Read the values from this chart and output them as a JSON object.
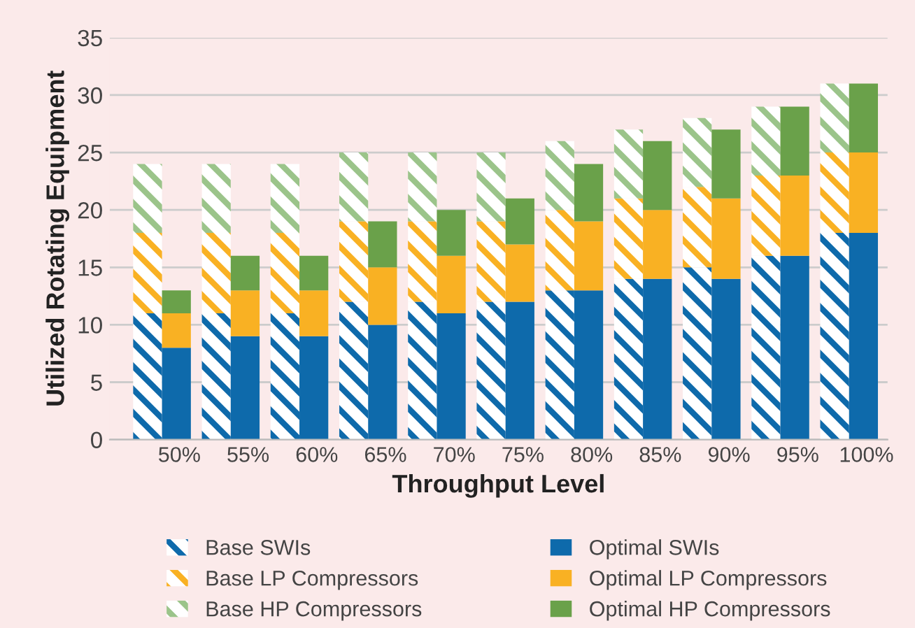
{
  "chart_data": {
    "type": "bar",
    "stacked": true,
    "xlabel": "Throughput Level",
    "ylabel": "Utilized Rotating Equipment",
    "categories": [
      null,
      "50%",
      null,
      "55%",
      null,
      "60%",
      null,
      "65%",
      null,
      "70%",
      null,
      "75%",
      null,
      "80%",
      null,
      "85%",
      null,
      "90%",
      null,
      "95%",
      null,
      "100%"
    ],
    "ylim": [
      0,
      35
    ],
    "yticks": [
      0,
      5,
      10,
      15,
      20,
      25,
      30,
      35
    ],
    "grid": "y",
    "legend": "bottom",
    "series": [
      {
        "name": "Base SWIs",
        "color": "#0e6aab",
        "values": [
          11,
          null,
          11,
          null,
          11,
          null,
          12,
          null,
          12,
          null,
          12,
          null,
          13,
          null,
          14,
          null,
          15,
          null,
          16,
          null,
          18,
          null
        ]
      },
      {
        "name": "Base LP Compressors",
        "color": "#f9b123",
        "values": [
          7,
          null,
          7,
          null,
          7,
          null,
          7,
          null,
          7,
          null,
          7,
          null,
          7,
          null,
          7,
          null,
          7,
          null,
          7,
          null,
          7,
          null
        ]
      },
      {
        "name": "Base HP Compressors",
        "color": "#9bc48a",
        "values": [
          6,
          null,
          6,
          null,
          6,
          null,
          6,
          null,
          6,
          null,
          6,
          null,
          6,
          null,
          6,
          null,
          6,
          null,
          6,
          null,
          6,
          null
        ]
      },
      {
        "name": "Optimal SWIs",
        "color": "#0e6aab",
        "values": [
          null,
          8,
          null,
          9,
          null,
          9,
          null,
          10,
          null,
          11,
          null,
          12,
          null,
          13,
          null,
          14,
          null,
          14,
          null,
          16,
          null,
          18
        ]
      },
      {
        "name": "Optimal LP Compressors",
        "color": "#f9b123",
        "values": [
          null,
          3,
          null,
          4,
          null,
          4,
          null,
          5,
          null,
          5,
          null,
          5,
          null,
          6,
          null,
          6,
          null,
          7,
          null,
          7,
          null,
          7
        ]
      },
      {
        "name": "Optimal HP Compressors",
        "color": "#6aa14a",
        "values": [
          null,
          2,
          null,
          3,
          null,
          3,
          null,
          4,
          null,
          4,
          null,
          4,
          null,
          5,
          null,
          6,
          null,
          6,
          null,
          6,
          null,
          6
        ]
      }
    ]
  }
}
